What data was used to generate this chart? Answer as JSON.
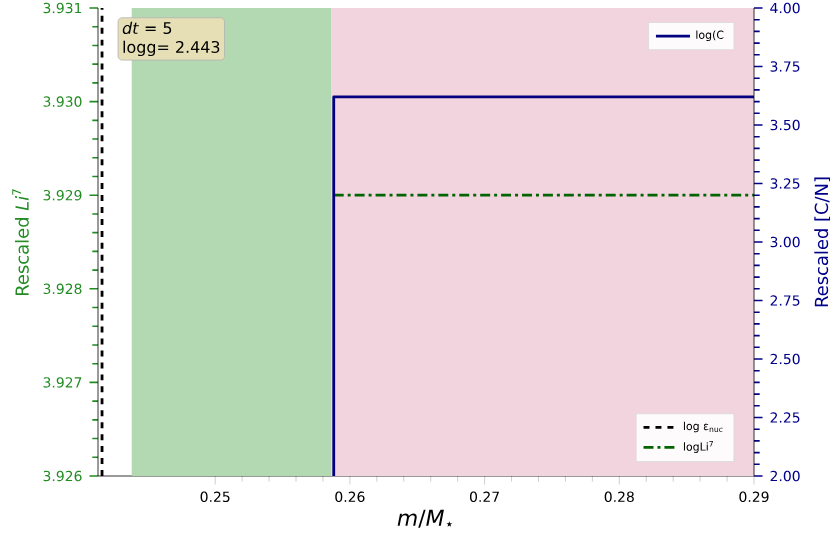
{
  "chart_data": {
    "type": "line",
    "xlabel": "*m*/*M*$_{⋆}$",
    "ylabel": "Rescaled *Li*$^{7}$",
    "y2label": "Rescaled [C/N]",
    "annotations": [
      "*dt* = 5",
      "logg= 2.443"
    ],
    "xlim": [
      0.2413,
      0.29
    ],
    "xticks": [
      0.25,
      0.26,
      0.27,
      0.28,
      0.29
    ],
    "ylim": [
      3.926,
      3.931
    ],
    "yticks": [
      3.926,
      3.927,
      3.928,
      3.929,
      {
        "value": 3.93,
        "label": "3.930"
      },
      3.931
    ],
    "y2lim": [
      2,
      4
    ],
    "y2ticks": [
      {
        "value": 2,
        "label": "2.00"
      },
      {
        "value": 2.25,
        "label": "2.25"
      },
      {
        "value": 2.5,
        "label": "2.50"
      },
      {
        "value": 2.75,
        "label": "2.75"
      },
      {
        "value": 3,
        "label": "3.00"
      },
      {
        "value": 3.25,
        "label": "3.25"
      },
      {
        "value": 3.5,
        "label": "3.50"
      },
      {
        "value": 3.75,
        "label": "3.75"
      },
      {
        "value": 4,
        "label": "4.00"
      }
    ],
    "bands": [
      {
        "axis": "x",
        "from": 0.2438,
        "to": 0.2586,
        "color": "#b3d9b3"
      },
      {
        "axis": "x",
        "from": 0.2586,
        "to": 0.29,
        "color": "#f2d4df"
      }
    ],
    "series": [
      {
        "name": "log(C",
        "color": "#000080",
        "axis": "y2",
        "line_style": "solid",
        "x": [
          0.2588,
          0.2588,
          0.29
        ],
        "values": [
          2,
          3.62,
          3.62
        ]
      },
      {
        "name": "log ε$_{nuc}$",
        "color": "#000000",
        "line_style": "dashed",
        "x": [
          0.2416,
          0.2416
        ],
        "values": [
          3.926,
          3.931
        ]
      },
      {
        "name": "logLi$^{7}$",
        "color": "#006400",
        "line_style": "dashdot",
        "x": [
          0.2588,
          0.29
        ],
        "values": [
          3.929,
          3.929
        ]
      }
    ],
    "legend": "right",
    "grid": false,
    "marker": "none"
  }
}
